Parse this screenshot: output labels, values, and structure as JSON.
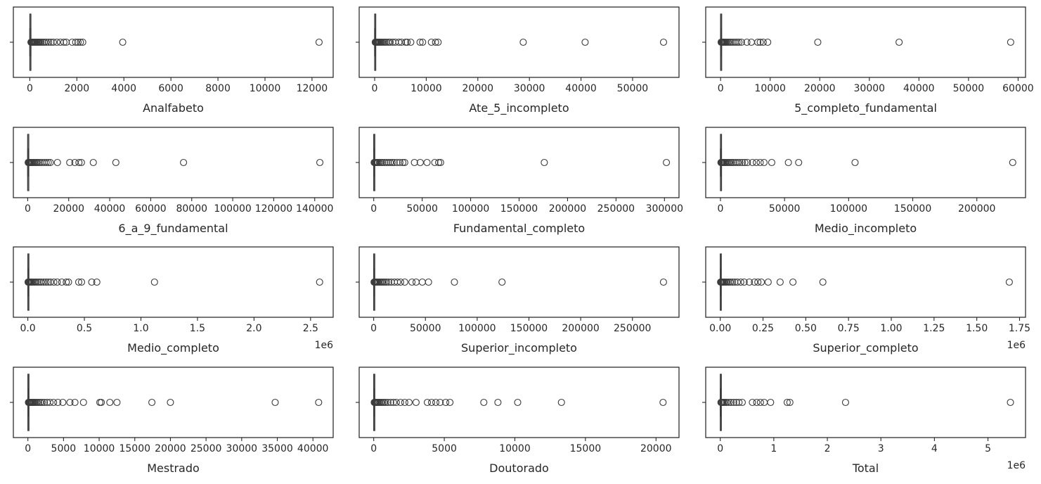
{
  "chart_data": [
    {
      "type": "boxplot",
      "xlabel": "Analfabeto",
      "xlim": [
        -700,
        12900
      ],
      "ticks": [
        0,
        2000,
        4000,
        6000,
        8000,
        10000,
        12000
      ],
      "tick_labels": [
        "0",
        "2000",
        "4000",
        "6000",
        "8000",
        "10000",
        "12000"
      ],
      "offset_label": "",
      "box": {
        "min": 0,
        "q1": 2,
        "median": 6,
        "q3": 20,
        "max": 45
      },
      "outliers": [
        50,
        60,
        75,
        90,
        110,
        130,
        150,
        170,
        200,
        230,
        260,
        300,
        340,
        380,
        420,
        480,
        550,
        620,
        700,
        800,
        900,
        1000,
        1150,
        1300,
        1450,
        1550,
        1800,
        1950,
        2050,
        2150,
        2250,
        3950,
        12300
      ]
    },
    {
      "type": "boxplot",
      "xlabel": "Ate_5_incompleto",
      "xlim": [
        -3000,
        59000
      ],
      "ticks": [
        0,
        10000,
        20000,
        30000,
        40000,
        50000
      ],
      "tick_labels": [
        "0",
        "10000",
        "20000",
        "30000",
        "40000",
        "50000"
      ],
      "offset_label": "",
      "box": {
        "min": 0,
        "q1": 5,
        "median": 15,
        "q3": 50,
        "max": 110
      },
      "outliers": [
        120,
        150,
        200,
        250,
        300,
        400,
        500,
        600,
        700,
        850,
        1000,
        1200,
        1400,
        1700,
        2000,
        2300,
        2700,
        3000,
        3500,
        4000,
        4700,
        5200,
        6000,
        6300,
        7000,
        8800,
        9300,
        11000,
        11800,
        12300,
        28800,
        40800,
        56000
      ]
    },
    {
      "type": "boxplot",
      "xlabel": "5_completo_fundamental",
      "xlim": [
        -3000,
        61500
      ],
      "ticks": [
        0,
        10000,
        20000,
        30000,
        40000,
        50000,
        60000
      ],
      "tick_labels": [
        "0",
        "10000",
        "20000",
        "30000",
        "40000",
        "50000",
        "60000"
      ],
      "offset_label": "",
      "box": {
        "min": 0,
        "q1": 5,
        "median": 15,
        "q3": 50,
        "max": 110
      },
      "outliers": [
        120,
        150,
        200,
        300,
        400,
        500,
        650,
        800,
        1000,
        1200,
        1500,
        1800,
        2100,
        2500,
        2900,
        3300,
        3700,
        4200,
        5300,
        6200,
        7500,
        8000,
        8600,
        9500,
        19600,
        36000,
        58500
      ]
    },
    {
      "type": "boxplot",
      "xlabel": "6_a_9_fundamental",
      "xlim": [
        -7000,
        149000
      ],
      "ticks": [
        0,
        20000,
        40000,
        60000,
        80000,
        100000,
        120000,
        140000
      ],
      "tick_labels": [
        "0",
        "20000",
        "40000",
        "60000",
        "80000",
        "100000",
        "120000",
        "140000"
      ],
      "offset_label": "",
      "box": {
        "min": 0,
        "q1": 10,
        "median": 30,
        "q3": 100,
        "max": 220
      },
      "outliers": [
        250,
        350,
        500,
        700,
        900,
        1200,
        1500,
        1900,
        2300,
        2800,
        3300,
        3900,
        4500,
        5200,
        6000,
        7000,
        8000,
        9000,
        10000,
        11000,
        14500,
        20500,
        23000,
        25000,
        26200,
        32000,
        43000,
        76000,
        142500
      ]
    },
    {
      "type": "boxplot",
      "xlabel": "Fundamental_completo",
      "xlim": [
        -15000,
        315000
      ],
      "ticks": [
        0,
        50000,
        100000,
        150000,
        200000,
        250000,
        300000
      ],
      "tick_labels": [
        "0",
        "50000",
        "100000",
        "150000",
        "200000",
        "250000",
        "300000"
      ],
      "offset_label": "",
      "box": {
        "min": 0,
        "q1": 20,
        "median": 60,
        "q3": 200,
        "max": 450
      },
      "outliers": [
        500,
        800,
        1200,
        1800,
        2500,
        3500,
        4500,
        6000,
        7500,
        9000,
        11000,
        13000,
        15000,
        17000,
        19000,
        21000,
        24000,
        27000,
        30000,
        32000,
        42000,
        48000,
        55000,
        63000,
        67000,
        69000,
        176000,
        302000
      ]
    },
    {
      "type": "boxplot",
      "xlabel": "Medio_incompleto",
      "xlim": [
        -11500,
        238000
      ],
      "ticks": [
        0,
        50000,
        100000,
        150000,
        200000
      ],
      "tick_labels": [
        "0",
        "50000",
        "100000",
        "150000",
        "200000"
      ],
      "offset_label": "",
      "box": {
        "min": 0,
        "q1": 15,
        "median": 50,
        "q3": 160,
        "max": 360
      },
      "outliers": [
        400,
        600,
        900,
        1300,
        1800,
        2400,
        3000,
        3800,
        4700,
        5600,
        6600,
        7800,
        9000,
        10500,
        12000,
        13500,
        15000,
        17000,
        19000,
        21000,
        25000,
        28000,
        31000,
        34000,
        40000,
        53000,
        61000,
        105000,
        228000
      ]
    },
    {
      "type": "boxplot",
      "xlabel": "Medio_completo",
      "xlim": [
        -128000,
        2700000
      ],
      "ticks": [
        0,
        500000,
        1000000,
        1500000,
        2000000,
        2500000
      ],
      "tick_labels": [
        "0.0",
        "0.5",
        "1.0",
        "1.5",
        "2.0",
        "2.5"
      ],
      "offset_label": "1e6",
      "box": {
        "min": 0,
        "q1": 100,
        "median": 300,
        "q3": 1000,
        "max": 2200
      },
      "outliers": [
        2500,
        4000,
        6000,
        9000,
        13000,
        18000,
        24000,
        31000,
        40000,
        50000,
        62000,
        75000,
        90000,
        105000,
        120000,
        140000,
        160000,
        180000,
        200000,
        230000,
        260000,
        300000,
        340000,
        360000,
        450000,
        475000,
        565000,
        610000,
        1120000,
        2580000
      ]
    },
    {
      "type": "boxplot",
      "xlabel": "Superior_incompleto",
      "xlim": [
        -14000,
        295000
      ],
      "ticks": [
        0,
        50000,
        100000,
        150000,
        200000,
        250000
      ],
      "tick_labels": [
        "0",
        "50000",
        "100000",
        "150000",
        "200000",
        "250000"
      ],
      "offset_label": "",
      "box": {
        "min": 0,
        "q1": 10,
        "median": 40,
        "q3": 150,
        "max": 330
      },
      "outliers": [
        400,
        600,
        900,
        1300,
        1800,
        2400,
        3200,
        4100,
        5200,
        6400,
        7800,
        9200,
        10800,
        12500,
        14500,
        17000,
        20000,
        23000,
        26000,
        30000,
        37000,
        41000,
        47000,
        53000,
        78000,
        124000,
        280000
      ]
    },
    {
      "type": "boxplot",
      "xlabel": "Superior_completo",
      "xlim": [
        -85000,
        1785000
      ],
      "ticks": [
        0,
        250000,
        500000,
        750000,
        1000000,
        1250000,
        1500000,
        1750000
      ],
      "tick_labels": [
        "0.00",
        "0.25",
        "0.50",
        "0.75",
        "1.00",
        "1.25",
        "1.50",
        "1.75"
      ],
      "offset_label": "1e6",
      "box": {
        "min": 0,
        "q1": 50,
        "median": 200,
        "q3": 700,
        "max": 1600
      },
      "outliers": [
        2000,
        3500,
        5500,
        8000,
        11000,
        15000,
        20000,
        26000,
        33000,
        41000,
        50000,
        60000,
        72000,
        85000,
        100000,
        120000,
        140000,
        170000,
        200000,
        220000,
        240000,
        280000,
        350000,
        425000,
        600000,
        1690000
      ]
    },
    {
      "type": "boxplot",
      "xlabel": "Mestrado",
      "xlim": [
        -2040,
        42840
      ],
      "ticks": [
        0,
        5000,
        10000,
        15000,
        20000,
        25000,
        30000,
        35000,
        40000
      ],
      "tick_labels": [
        "0",
        "5000",
        "10000",
        "15000",
        "20000",
        "25000",
        "30000",
        "35000",
        "40000"
      ],
      "offset_label": "",
      "box": {
        "min": 0,
        "q1": 2,
        "median": 8,
        "q3": 30,
        "max": 70
      },
      "outliers": [
        80,
        120,
        170,
        230,
        300,
        380,
        470,
        570,
        680,
        800,
        950,
        1100,
        1300,
        1500,
        1750,
        2000,
        2300,
        2700,
        3100,
        3600,
        4200,
        4900,
        5900,
        6600,
        7800,
        10100,
        10300,
        11500,
        12500,
        17400,
        20000,
        34700,
        40800
      ]
    },
    {
      "type": "boxplot",
      "xlabel": "Doutorado",
      "xlim": [
        -1030,
        21630
      ],
      "ticks": [
        0,
        5000,
        10000,
        15000,
        20000
      ],
      "tick_labels": [
        "0",
        "5000",
        "10000",
        "15000",
        "20000"
      ],
      "offset_label": "",
      "box": {
        "min": 0,
        "q1": 1,
        "median": 4,
        "q3": 15,
        "max": 35
      },
      "outliers": [
        40,
        60,
        90,
        120,
        160,
        210,
        270,
        340,
        420,
        510,
        610,
        720,
        850,
        1000,
        1200,
        1400,
        1600,
        1900,
        2200,
        2500,
        3000,
        3800,
        4100,
        4400,
        4700,
        5100,
        5400,
        7800,
        8800,
        10200,
        13300,
        20500
      ]
    },
    {
      "type": "boxplot",
      "xlabel": "Total",
      "xlim": [
        -272000,
        5702000
      ],
      "ticks": [
        0,
        1000000,
        2000000,
        3000000,
        4000000,
        5000000
      ],
      "tick_labels": [
        "0",
        "1",
        "2",
        "3",
        "4",
        "5"
      ],
      "offset_label": "1e6",
      "box": {
        "min": 0,
        "q1": 500,
        "median": 1500,
        "q3": 5000,
        "max": 11000
      },
      "outliers": [
        13000,
        20000,
        30000,
        45000,
        65000,
        90000,
        120000,
        160000,
        200000,
        250000,
        300000,
        350000,
        410000,
        600000,
        680000,
        750000,
        820000,
        940000,
        1250000,
        1300000,
        2340000,
        5420000
      ]
    }
  ]
}
